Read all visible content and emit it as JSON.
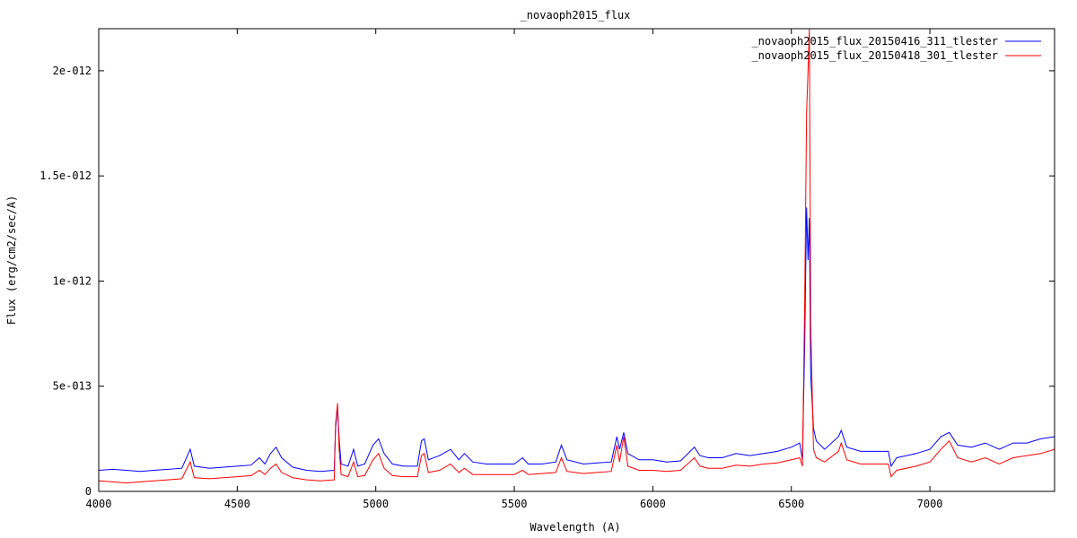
{
  "chart_data": {
    "type": "line",
    "title": "_novaoph2015_flux",
    "xlabel": "Wavelength (A)",
    "ylabel": "Flux (erg/cm2/sec/A)",
    "xlim": [
      4000,
      7450
    ],
    "ylim": [
      0,
      2.2e-12
    ],
    "x_ticks": [
      4000,
      4500,
      5000,
      5500,
      6000,
      6500,
      7000
    ],
    "x_tick_labels": [
      "4000",
      "4500",
      "5000",
      "5500",
      "6000",
      "6500",
      "7000"
    ],
    "y_ticks": [
      0,
      5e-13,
      1e-12,
      1.5e-12,
      2e-12
    ],
    "y_tick_labels": [
      "0",
      "5e-013",
      "1e-012",
      "1.5e-012",
      "2e-012"
    ],
    "grid": false,
    "legend_position": "top-right",
    "series": [
      {
        "name": "_novaoph2015_flux_20150416_311_tlester",
        "color": "#0000ff",
        "points": [
          [
            4000,
            1e-13
          ],
          [
            4050,
            1.05e-13
          ],
          [
            4100,
            1e-13
          ],
          [
            4150,
            9.5e-14
          ],
          [
            4200,
            1e-13
          ],
          [
            4250,
            1.05e-13
          ],
          [
            4300,
            1.1e-13
          ],
          [
            4330,
            2e-13
          ],
          [
            4345,
            1.2e-13
          ],
          [
            4400,
            1.1e-13
          ],
          [
            4450,
            1.15e-13
          ],
          [
            4500,
            1.2e-13
          ],
          [
            4550,
            1.25e-13
          ],
          [
            4580,
            1.6e-13
          ],
          [
            4600,
            1.3e-13
          ],
          [
            4620,
            1.8e-13
          ],
          [
            4640,
            2.1e-13
          ],
          [
            4660,
            1.6e-13
          ],
          [
            4700,
            1.15e-13
          ],
          [
            4750,
            1e-13
          ],
          [
            4800,
            9.5e-14
          ],
          [
            4850,
            1e-13
          ],
          [
            4855,
            3e-13
          ],
          [
            4862,
            4e-13
          ],
          [
            4868,
            2.5e-13
          ],
          [
            4875,
            1.3e-13
          ],
          [
            4900,
            1.2e-13
          ],
          [
            4920,
            2e-13
          ],
          [
            4935,
            1.2e-13
          ],
          [
            4960,
            1.3e-13
          ],
          [
            4990,
            2.2e-13
          ],
          [
            5010,
            2.5e-13
          ],
          [
            5030,
            1.8e-13
          ],
          [
            5060,
            1.3e-13
          ],
          [
            5100,
            1.2e-13
          ],
          [
            5150,
            1.2e-13
          ],
          [
            5165,
            2.4e-13
          ],
          [
            5175,
            2.5e-13
          ],
          [
            5190,
            1.5e-13
          ],
          [
            5230,
            1.7e-13
          ],
          [
            5270,
            2e-13
          ],
          [
            5300,
            1.5e-13
          ],
          [
            5320,
            1.8e-13
          ],
          [
            5350,
            1.4e-13
          ],
          [
            5400,
            1.3e-13
          ],
          [
            5450,
            1.3e-13
          ],
          [
            5500,
            1.3e-13
          ],
          [
            5530,
            1.6e-13
          ],
          [
            5550,
            1.3e-13
          ],
          [
            5600,
            1.3e-13
          ],
          [
            5650,
            1.4e-13
          ],
          [
            5670,
            2.2e-13
          ],
          [
            5690,
            1.5e-13
          ],
          [
            5750,
            1.3e-13
          ],
          [
            5800,
            1.35e-13
          ],
          [
            5850,
            1.4e-13
          ],
          [
            5870,
            2.6e-13
          ],
          [
            5880,
            2e-13
          ],
          [
            5895,
            2.8e-13
          ],
          [
            5910,
            1.8e-13
          ],
          [
            5950,
            1.5e-13
          ],
          [
            6000,
            1.5e-13
          ],
          [
            6050,
            1.4e-13
          ],
          [
            6100,
            1.45e-13
          ],
          [
            6150,
            2.1e-13
          ],
          [
            6170,
            1.7e-13
          ],
          [
            6200,
            1.6e-13
          ],
          [
            6250,
            1.6e-13
          ],
          [
            6300,
            1.8e-13
          ],
          [
            6350,
            1.7e-13
          ],
          [
            6400,
            1.8e-13
          ],
          [
            6450,
            1.9e-13
          ],
          [
            6500,
            2.1e-13
          ],
          [
            6530,
            2.3e-13
          ],
          [
            6540,
            1.5e-13
          ],
          [
            6548,
            7e-13
          ],
          [
            6555,
            1.35e-12
          ],
          [
            6560,
            1.1e-12
          ],
          [
            6565,
            1.3e-12
          ],
          [
            6570,
            5.5e-13
          ],
          [
            6580,
            3e-13
          ],
          [
            6590,
            2.4e-13
          ],
          [
            6620,
            2e-13
          ],
          [
            6670,
            2.6e-13
          ],
          [
            6680,
            2.9e-13
          ],
          [
            6700,
            2.1e-13
          ],
          [
            6750,
            1.9e-13
          ],
          [
            6800,
            1.9e-13
          ],
          [
            6850,
            1.9e-13
          ],
          [
            6860,
            1.2e-13
          ],
          [
            6880,
            1.6e-13
          ],
          [
            6950,
            1.8e-13
          ],
          [
            7000,
            2e-13
          ],
          [
            7040,
            2.6e-13
          ],
          [
            7070,
            2.8e-13
          ],
          [
            7100,
            2.2e-13
          ],
          [
            7150,
            2.1e-13
          ],
          [
            7200,
            2.3e-13
          ],
          [
            7250,
            2e-13
          ],
          [
            7300,
            2.3e-13
          ],
          [
            7350,
            2.3e-13
          ],
          [
            7400,
            2.5e-13
          ],
          [
            7450,
            2.6e-13
          ]
        ]
      },
      {
        "name": "_novaoph2015_flux_20150418_301_tlester",
        "color": "#ff0000",
        "points": [
          [
            4000,
            5e-14
          ],
          [
            4050,
            4.5e-14
          ],
          [
            4100,
            4e-14
          ],
          [
            4150,
            4.5e-14
          ],
          [
            4200,
            5e-14
          ],
          [
            4250,
            5.5e-14
          ],
          [
            4300,
            6e-14
          ],
          [
            4330,
            1.4e-13
          ],
          [
            4345,
            6.5e-14
          ],
          [
            4400,
            6e-14
          ],
          [
            4450,
            6.5e-14
          ],
          [
            4500,
            7e-14
          ],
          [
            4550,
            7.5e-14
          ],
          [
            4580,
            1e-13
          ],
          [
            4600,
            8e-14
          ],
          [
            4620,
            1.1e-13
          ],
          [
            4640,
            1.3e-13
          ],
          [
            4660,
            9e-14
          ],
          [
            4700,
            6.5e-14
          ],
          [
            4750,
            5.5e-14
          ],
          [
            4800,
            5e-14
          ],
          [
            4850,
            5.5e-14
          ],
          [
            4855,
            3.2e-13
          ],
          [
            4862,
            4.2e-13
          ],
          [
            4868,
            2e-13
          ],
          [
            4875,
            8e-14
          ],
          [
            4900,
            7e-14
          ],
          [
            4920,
            1.4e-13
          ],
          [
            4935,
            7e-14
          ],
          [
            4960,
            7.5e-14
          ],
          [
            4990,
            1.5e-13
          ],
          [
            5010,
            1.8e-13
          ],
          [
            5030,
            1.1e-13
          ],
          [
            5060,
            7.5e-14
          ],
          [
            5100,
            7e-14
          ],
          [
            5150,
            7e-14
          ],
          [
            5165,
            1.7e-13
          ],
          [
            5175,
            1.8e-13
          ],
          [
            5190,
            9e-14
          ],
          [
            5230,
            1e-13
          ],
          [
            5270,
            1.3e-13
          ],
          [
            5300,
            9e-14
          ],
          [
            5320,
            1.1e-13
          ],
          [
            5350,
            8e-14
          ],
          [
            5400,
            8e-14
          ],
          [
            5450,
            8e-14
          ],
          [
            5500,
            8e-14
          ],
          [
            5530,
            1e-13
          ],
          [
            5550,
            8e-14
          ],
          [
            5600,
            8.5e-14
          ],
          [
            5650,
            9e-14
          ],
          [
            5670,
            1.6e-13
          ],
          [
            5690,
            9.5e-14
          ],
          [
            5750,
            8.5e-14
          ],
          [
            5800,
            9e-14
          ],
          [
            5850,
            9.5e-14
          ],
          [
            5870,
            2.2e-13
          ],
          [
            5880,
            1.4e-13
          ],
          [
            5895,
            2.6e-13
          ],
          [
            5910,
            1.2e-13
          ],
          [
            5950,
            1e-13
          ],
          [
            6000,
            1e-13
          ],
          [
            6050,
            9.5e-14
          ],
          [
            6100,
            1e-13
          ],
          [
            6150,
            1.6e-13
          ],
          [
            6170,
            1.2e-13
          ],
          [
            6200,
            1.1e-13
          ],
          [
            6250,
            1.1e-13
          ],
          [
            6300,
            1.25e-13
          ],
          [
            6350,
            1.2e-13
          ],
          [
            6400,
            1.3e-13
          ],
          [
            6450,
            1.35e-13
          ],
          [
            6500,
            1.5e-13
          ],
          [
            6530,
            1.6e-13
          ],
          [
            6540,
            1.2e-13
          ],
          [
            6548,
            9e-13
          ],
          [
            6555,
            1.8e-12
          ],
          [
            6560,
            2e-12
          ],
          [
            6565,
            2.2e-12
          ],
          [
            6570,
            8e-13
          ],
          [
            6580,
            2e-13
          ],
          [
            6590,
            1.6e-13
          ],
          [
            6620,
            1.4e-13
          ],
          [
            6670,
            1.9e-13
          ],
          [
            6680,
            2.3e-13
          ],
          [
            6700,
            1.5e-13
          ],
          [
            6750,
            1.3e-13
          ],
          [
            6800,
            1.3e-13
          ],
          [
            6850,
            1.3e-13
          ],
          [
            6860,
            7e-14
          ],
          [
            6880,
            1e-13
          ],
          [
            6950,
            1.2e-13
          ],
          [
            7000,
            1.4e-13
          ],
          [
            7040,
            2e-13
          ],
          [
            7070,
            2.4e-13
          ],
          [
            7100,
            1.6e-13
          ],
          [
            7150,
            1.4e-13
          ],
          [
            7200,
            1.6e-13
          ],
          [
            7250,
            1.3e-13
          ],
          [
            7300,
            1.6e-13
          ],
          [
            7350,
            1.7e-13
          ],
          [
            7400,
            1.8e-13
          ],
          [
            7450,
            2e-13
          ]
        ]
      }
    ]
  }
}
